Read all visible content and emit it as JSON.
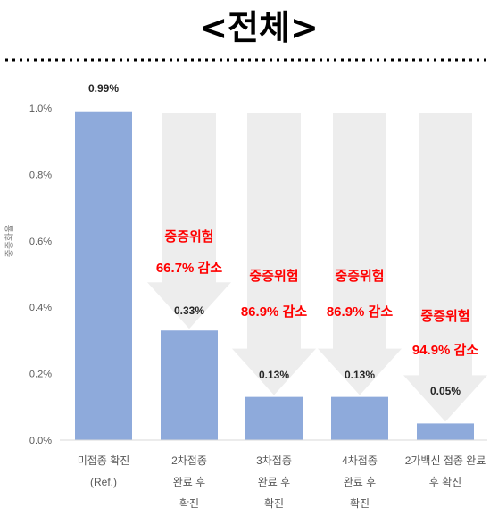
{
  "page_title": "<전체>",
  "chart_data": {
    "type": "bar",
    "title": "<전체>",
    "ylabel": "중증화율",
    "xlabel": "",
    "ylim": [
      0,
      1.0
    ],
    "yticks": [
      "0.0%",
      "0.2%",
      "0.4%",
      "0.6%",
      "0.8%",
      "1.0%"
    ],
    "ytick_values": [
      0,
      0.2,
      0.4,
      0.6,
      0.8,
      1.0
    ],
    "categories": [
      [
        "미접종 확진",
        "(Ref.)"
      ],
      [
        "2차접종",
        "완료 후",
        "확진"
      ],
      [
        "3차접종",
        "완료 후",
        "확진"
      ],
      [
        "4차접종",
        "완료 후",
        "확진"
      ],
      [
        "2가백신 접종 완료",
        "후 확진"
      ]
    ],
    "values": [
      0.99,
      0.33,
      0.13,
      0.13,
      0.05
    ],
    "data_labels": [
      "0.99%",
      "0.33%",
      "0.13%",
      "0.13%",
      "0.05%"
    ],
    "annotations": [
      null,
      [
        "중증위험",
        "66.7% 감소"
      ],
      [
        "중증위험",
        "86.9% 감소"
      ],
      [
        "중증위험",
        "86.9% 감소"
      ],
      [
        "중증위험",
        "94.9% 감소"
      ]
    ],
    "grid": false,
    "colors": {
      "bar": "#8eaadb",
      "arrow": "#ededed",
      "annotation": "#ff0000",
      "axis_text": "#595959",
      "label_text": "#262626",
      "title": "#000000",
      "divider": "#000000"
    }
  }
}
